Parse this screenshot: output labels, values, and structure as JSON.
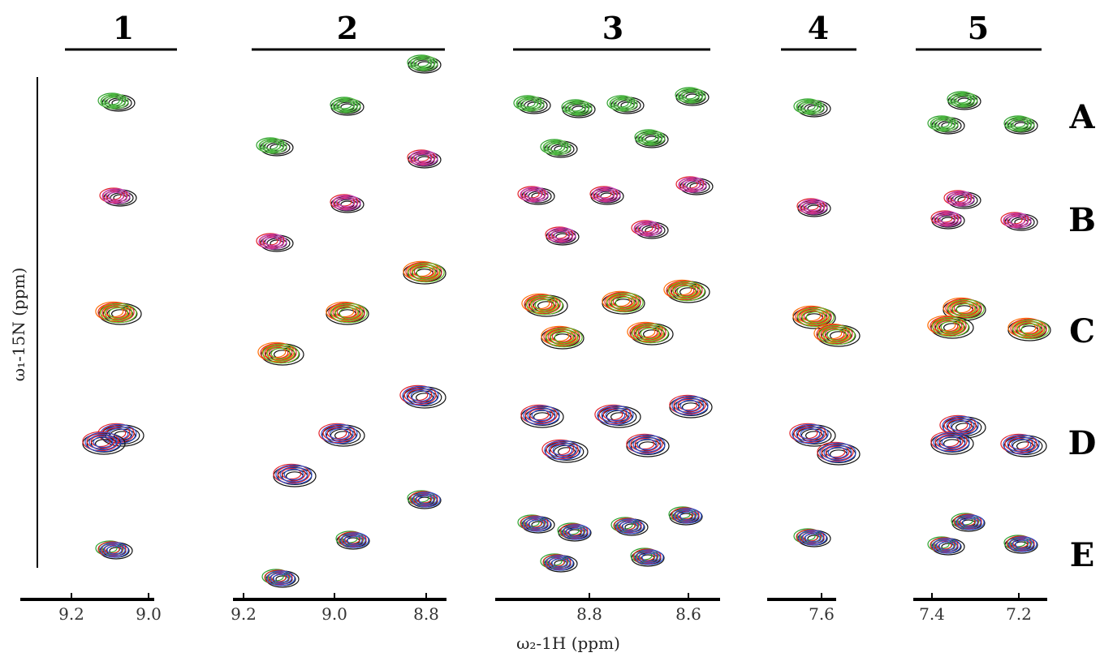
{
  "columns": [
    "1",
    "2",
    "3",
    "4",
    "5"
  ],
  "rows": [
    "A",
    "B",
    "C",
    "D",
    "E"
  ],
  "y_axis_label": "ω₁-15N (ppm)",
  "x_axis_label": "ω₂-1H (ppm)",
  "x_ticks": [
    [
      "9.2",
      "9.0"
    ],
    [
      "9.2",
      "9.0",
      "8.8"
    ],
    [
      "8.8",
      "8.6"
    ],
    [
      "7.6"
    ],
    [
      "7.4",
      "7.2"
    ]
  ]
}
